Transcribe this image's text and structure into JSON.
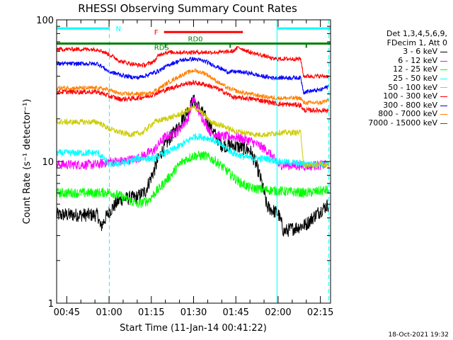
{
  "chart_data": {
    "type": "line",
    "title": "RHESSI Observing Summary Count Rates",
    "xlabel": "Start Time (11-Jan-14 00:41:22)",
    "ylabel": "Count Rate (s⁻¹ detector⁻¹)",
    "y_scale": "log",
    "ylim": [
      1,
      100
    ],
    "xlim_minutes": [
      41.4,
      138.6
    ],
    "x_ticks": [
      {
        "label": "00:45",
        "minute": 45
      },
      {
        "label": "01:00",
        "minute": 60
      },
      {
        "label": "01:15",
        "minute": 75
      },
      {
        "label": "01:30",
        "minute": 90
      },
      {
        "label": "01:45",
        "minute": 105
      },
      {
        "label": "02:00",
        "minute": 120
      },
      {
        "label": "02:15",
        "minute": 135
      }
    ],
    "y_tick_labels": [
      {
        "label": "1",
        "value": 1
      },
      {
        "label": "10",
        "value": 10
      },
      {
        "label": "100",
        "value": 100
      }
    ],
    "legend_header": [
      "Det 1,3,4,5,6,9,",
      "FDecim 1, Att 0"
    ],
    "series": [
      {
        "name": "3 - 6 keV",
        "color": "#000000",
        "x": [
          41.4,
          56,
          57,
          60,
          64,
          70,
          73,
          76,
          78,
          80,
          84,
          88,
          90,
          92,
          95,
          98,
          100,
          104,
          110,
          113,
          116,
          119,
          120,
          122,
          124,
          126,
          130,
          135,
          138
        ],
        "values": [
          4.2,
          4.2,
          3.4,
          4.4,
          5.4,
          5.6,
          6.2,
          8.6,
          11,
          13,
          17,
          23,
          27,
          24,
          19,
          15,
          13,
          13,
          12,
          8.5,
          4.8,
          4.4,
          4.3,
          3.2,
          3.3,
          3.4,
          3.6,
          4.5,
          5.0
        ]
      },
      {
        "name": "6 - 12 keV",
        "color": "#ff00ff",
        "x": [
          41.4,
          56,
          60,
          64,
          70,
          76,
          80,
          84,
          88,
          90,
          92,
          96,
          100,
          104,
          110,
          116,
          120,
          130,
          138
        ],
        "values": [
          9.5,
          9.5,
          10,
          10,
          10.5,
          12,
          15,
          16,
          20,
          28,
          22,
          16,
          15,
          15,
          14,
          12,
          9.5,
          9.3,
          9.5
        ]
      },
      {
        "name": "12 - 25 keV",
        "color": "#00ff00",
        "x": [
          41.4,
          56,
          60,
          66,
          70,
          74,
          78,
          82,
          86,
          90,
          94,
          98,
          102,
          106,
          110,
          116,
          120,
          130,
          138
        ],
        "values": [
          6.0,
          6.0,
          6.1,
          5.5,
          5.0,
          5.3,
          6.5,
          8.0,
          10,
          11,
          11,
          10,
          8.5,
          7.2,
          6.5,
          6.3,
          6.2,
          6.0,
          6.3
        ]
      },
      {
        "name": "25 - 50 keV",
        "color": "#00ffff",
        "x": [
          41.4,
          56,
          60,
          66,
          70,
          76,
          80,
          84,
          88,
          90,
          92,
          96,
          100,
          104,
          108,
          112,
          116,
          120,
          130,
          138
        ],
        "values": [
          11.5,
          11.5,
          9.5,
          9.8,
          10.5,
          10.5,
          11.5,
          12.5,
          14,
          15,
          15,
          14.5,
          13,
          11.5,
          10.8,
          10.5,
          10.5,
          10,
          9.6,
          9.6
        ]
      },
      {
        "name": "50 - 100 keV",
        "color": "#cccc00",
        "x": [
          41.4,
          56,
          60,
          64,
          68,
          72,
          76,
          80,
          84,
          88,
          90,
          92,
          96,
          100,
          104,
          108,
          112,
          116,
          120,
          128,
          129,
          135,
          138
        ],
        "values": [
          19,
          19,
          17,
          16,
          15.5,
          16,
          19,
          20,
          21,
          23,
          24,
          23,
          19,
          18,
          16.5,
          16,
          15.5,
          15.5,
          16,
          16,
          9.3,
          9.5,
          9.5
        ]
      },
      {
        "name": "100 - 300 keV",
        "color": "#ff0000",
        "x": [
          41.4,
          56,
          60,
          64,
          70,
          74,
          78,
          82,
          86,
          90,
          94,
          98,
          102,
          104,
          106,
          108,
          112,
          116,
          120,
          128,
          129,
          135,
          138
        ],
        "values": [
          31,
          31,
          29,
          27.5,
          28,
          29,
          31,
          33,
          35,
          36,
          35,
          33,
          30,
          28.5,
          28,
          28,
          27.5,
          26.5,
          25.5,
          25,
          23,
          23,
          23
        ]
      },
      {
        "name": "300 - 800 keV",
        "color": "#0000ff",
        "x": [
          41.4,
          56,
          60,
          66,
          70,
          74,
          78,
          82,
          86,
          90,
          94,
          98,
          102,
          106,
          110,
          114,
          118,
          120,
          128,
          129,
          135,
          138
        ],
        "values": [
          49,
          49,
          43,
          40,
          39,
          41,
          44,
          49,
          52,
          53,
          51,
          47,
          43,
          43,
          42,
          40,
          39,
          39,
          39,
          31,
          32,
          34
        ]
      },
      {
        "name": "800 - 7000 keV",
        "color": "#ff8000",
        "x": [
          41.4,
          56,
          60,
          64,
          70,
          74,
          78,
          82,
          86,
          90,
          94,
          98,
          102,
          106,
          110,
          116,
          120,
          128,
          129,
          135,
          138
        ],
        "values": [
          33,
          33,
          32,
          30,
          30,
          30,
          33,
          37,
          41,
          44,
          42,
          37,
          33,
          31,
          30,
          28.5,
          28,
          28,
          26,
          26,
          27
        ]
      },
      {
        "name": "7000 - 15000 keV",
        "color": "#8b4500",
        "x": [],
        "values": []
      }
    ],
    "red_band_series": {
      "x": [
        41.4,
        56,
        60,
        64,
        70,
        73,
        76,
        78,
        80,
        90,
        100,
        104,
        106,
        110,
        116,
        118,
        120,
        128,
        129,
        135,
        138
      ],
      "values": [
        62,
        62,
        57,
        51,
        48,
        48,
        51,
        57,
        59,
        59,
        59,
        60,
        64,
        59,
        55,
        53,
        53,
        53,
        40,
        40,
        40
      ]
    },
    "annotations": {
      "night_bars": [
        {
          "label": "N",
          "x_start": 41.4,
          "x_end": 60.1
        },
        {
          "label": "",
          "x_start": 119.6,
          "x_end": 138.6
        }
      ],
      "night_boundaries_dashed": [
        60.1,
        138.0
      ],
      "night_boundaries_solid": [
        119.6
      ],
      "flare_bar": {
        "label": "F",
        "x_start": 79.5,
        "x_end": 107.5,
        "value": 82
      },
      "rd_bar": {
        "label": "RD0",
        "x_start": 41.4,
        "x_end": 138.6,
        "value": 68
      },
      "rd_label_left": "RDS",
      "rd_ticks": [
        80,
        103,
        130
      ]
    }
  },
  "footer": {
    "timestamp": "18-Oct-2021 19:32"
  }
}
